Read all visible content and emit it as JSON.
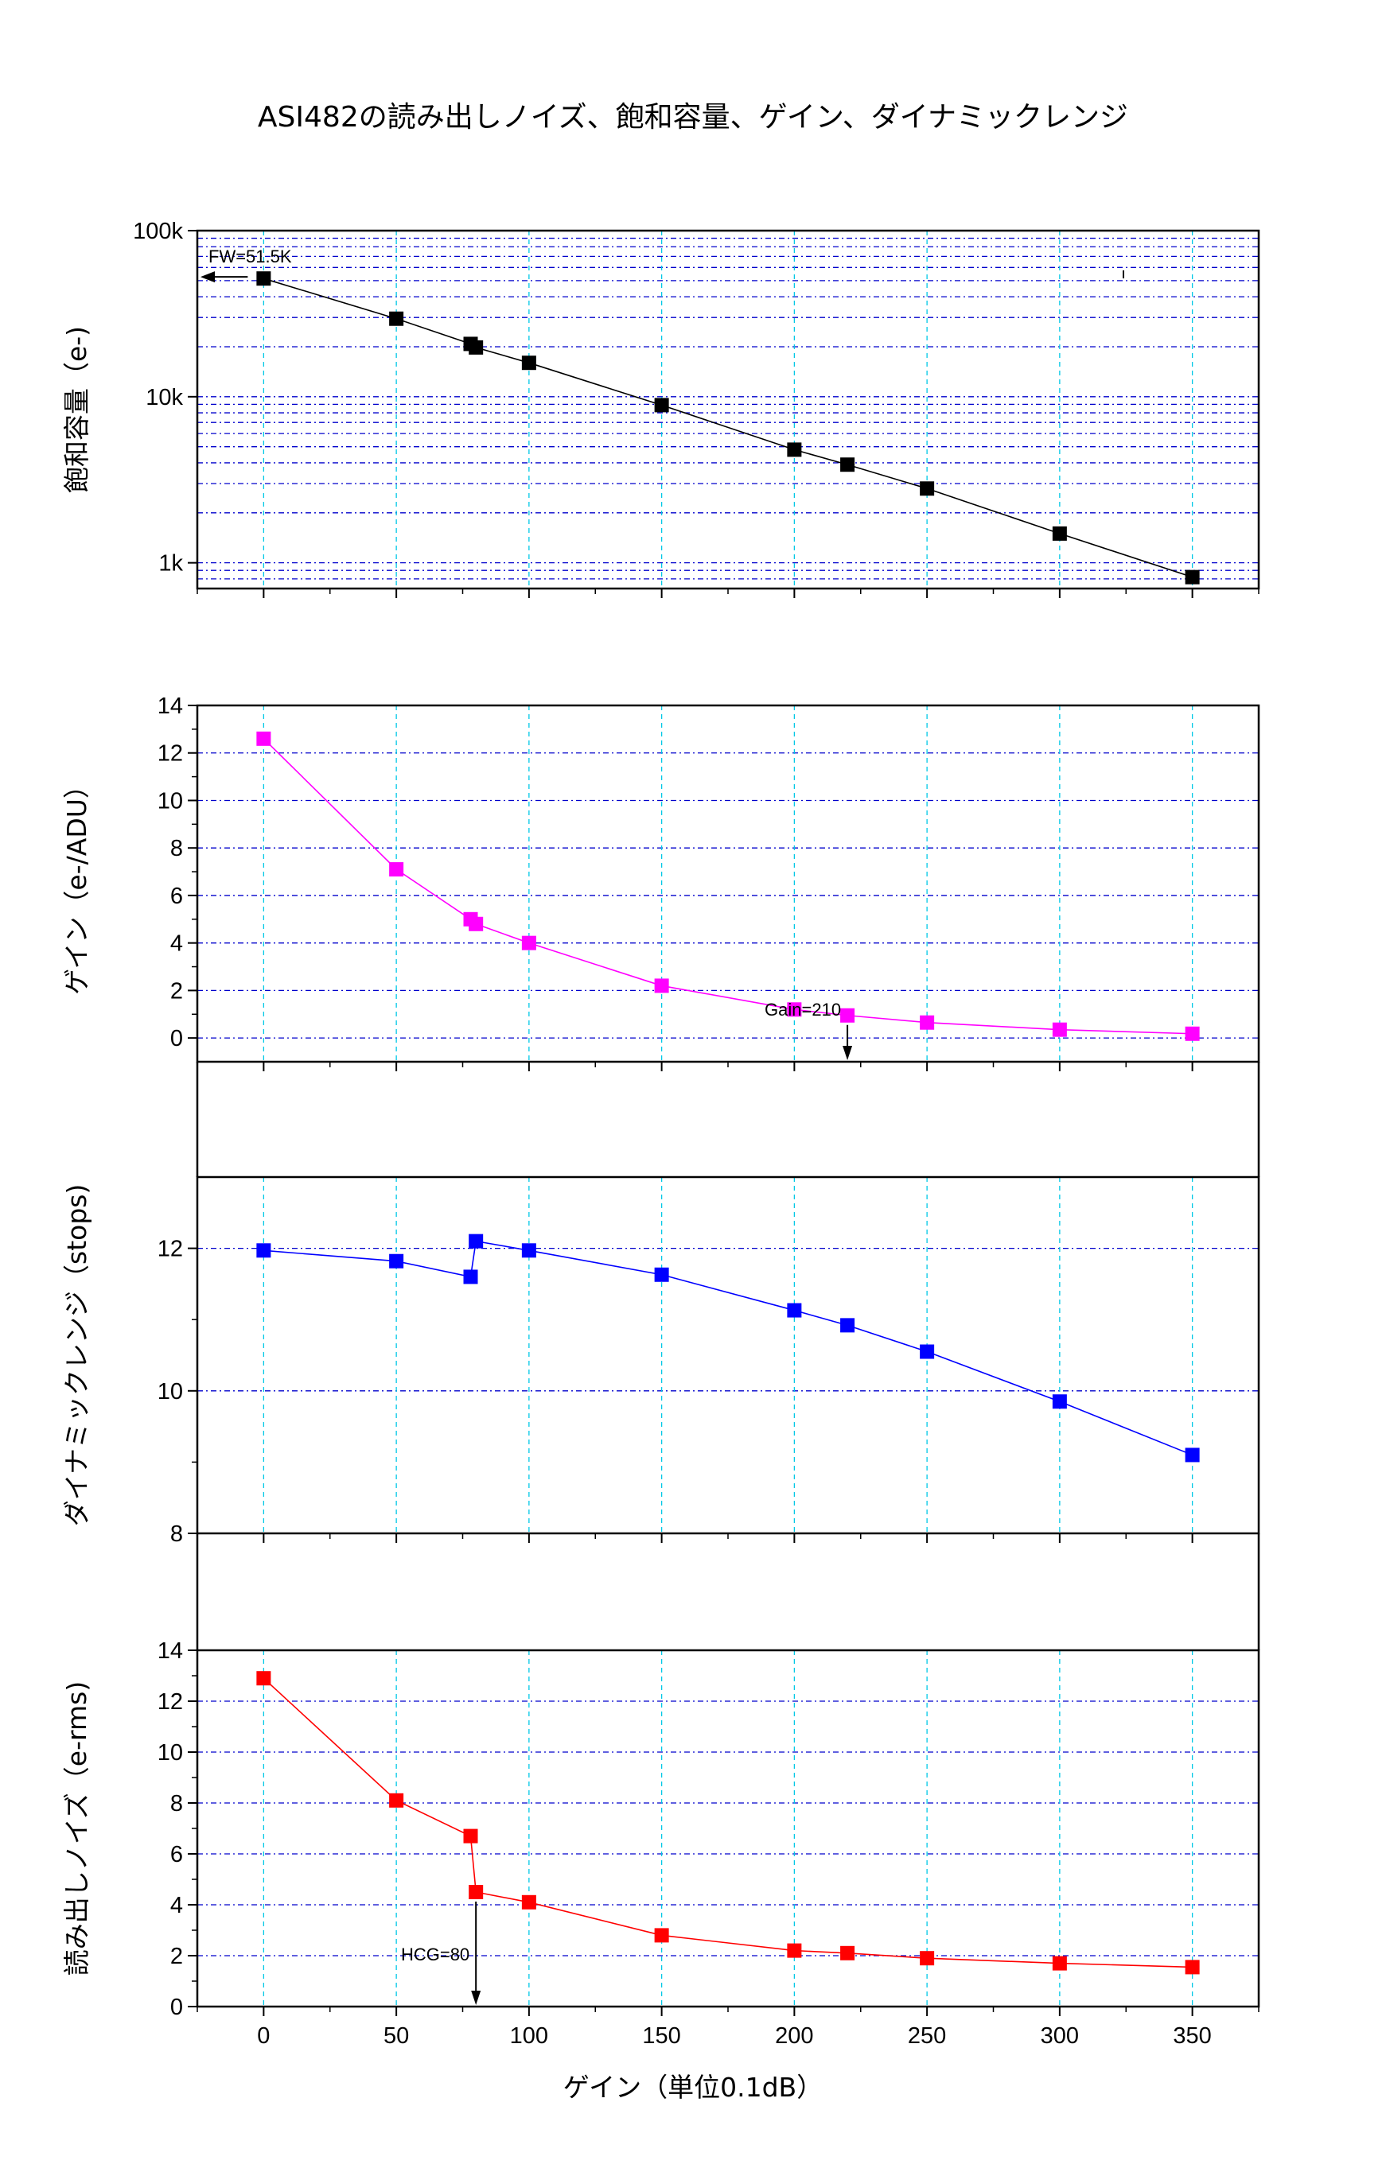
{
  "figure": {
    "title": "ASI482の読み出しノイズ、飽和容量、ゲイン、ダイナミックレンジ",
    "xlabel": "ゲイン（単位0.1dB）"
  },
  "x_axis": {
    "range": [
      -25,
      375
    ],
    "ticks": [
      0,
      50,
      100,
      150,
      200,
      250,
      300,
      350
    ],
    "tick_labels": [
      "0",
      "50",
      "100",
      "150",
      "200",
      "250",
      "300",
      "350"
    ]
  },
  "colors": {
    "full_well": "#000000",
    "gain": "#ff00ff",
    "dynamic_range": "#0000ff",
    "read_noise": "#ff0000",
    "v_grid": "#00c8e6",
    "h_grid": "#0000cc"
  },
  "chart_data": [
    {
      "id": "full-well",
      "type": "scatter",
      "ylabel": "飽和容量（e-)",
      "yscale": "log",
      "ylim": [
        700,
        100000
      ],
      "y_ticks": [
        1000,
        10000,
        100000
      ],
      "y_tick_labels": [
        "1k",
        "10k",
        "100k"
      ],
      "grid": true,
      "x": [
        0,
        50,
        78,
        80,
        100,
        150,
        200,
        220,
        250,
        300,
        350
      ],
      "y": [
        51500,
        29500,
        20800,
        19800,
        16000,
        8900,
        4800,
        3900,
        2800,
        1500,
        820
      ],
      "annotations": [
        {
          "text": "FW=51.5K",
          "x": 0,
          "y": 51500,
          "arrow": "left"
        }
      ]
    },
    {
      "id": "gain",
      "type": "line",
      "ylabel": "ゲイン（e-/ADU）",
      "yscale": "linear",
      "ylim": [
        -1,
        14
      ],
      "y_ticks": [
        0,
        2,
        4,
        6,
        8,
        10,
        12,
        14
      ],
      "y_tick_labels": [
        "0",
        "2",
        "4",
        "6",
        "8",
        "10",
        "12",
        "14"
      ],
      "grid": true,
      "x": [
        0,
        50,
        78,
        80,
        100,
        150,
        200,
        220,
        250,
        300,
        350
      ],
      "y": [
        12.6,
        7.1,
        5.0,
        4.8,
        4.0,
        2.2,
        1.2,
        0.95,
        0.65,
        0.35,
        0.18
      ],
      "annotations": [
        {
          "text": "Gain=210",
          "x": 220,
          "y": 0.95,
          "arrow": "down"
        }
      ]
    },
    {
      "id": "dynamic-range",
      "type": "line",
      "ylabel": "ダイナミックレンジ（stops)",
      "yscale": "linear",
      "ylim": [
        8,
        13
      ],
      "y_ticks": [
        8,
        10,
        12
      ],
      "y_tick_labels": [
        "8",
        "10",
        "12"
      ],
      "grid": true,
      "x": [
        0,
        50,
        78,
        80,
        100,
        150,
        200,
        220,
        250,
        300,
        350
      ],
      "y": [
        11.97,
        11.82,
        11.6,
        12.1,
        11.97,
        11.63,
        11.13,
        10.92,
        10.55,
        9.85,
        9.1
      ],
      "annotations": []
    },
    {
      "id": "read-noise",
      "type": "line",
      "ylabel": "読み出しノイズ（e-rms)",
      "yscale": "linear",
      "ylim": [
        0,
        14
      ],
      "y_ticks": [
        0,
        2,
        4,
        6,
        8,
        10,
        12,
        14
      ],
      "y_tick_labels": [
        "0",
        "2",
        "4",
        "6",
        "8",
        "10",
        "12",
        "14"
      ],
      "grid": true,
      "x": [
        0,
        50,
        78,
        80,
        100,
        150,
        200,
        220,
        250,
        300,
        350
      ],
      "y": [
        12.9,
        8.1,
        6.7,
        4.5,
        4.1,
        2.8,
        2.2,
        2.1,
        1.9,
        1.7,
        1.55
      ],
      "annotations": [
        {
          "text": "HCG=80",
          "x": 80,
          "y": 4.5,
          "arrow": "down"
        }
      ]
    }
  ]
}
